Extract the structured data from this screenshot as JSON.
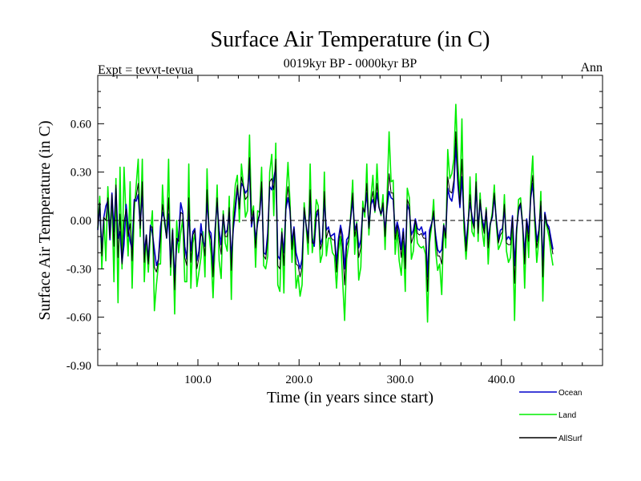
{
  "chart_data": {
    "type": "line",
    "title": "Surface Air Temperature (in C)",
    "subtitle": "0019kyr BP - 0000kyr BP",
    "left_label": "Expt = tevvt-tevua",
    "right_label": "Ann",
    "xlabel": "Time (in years since start)",
    "ylabel": "Surface Air Temperature (in C)",
    "xlim": [
      1,
      500
    ],
    "ylim": [
      -0.9,
      0.9
    ],
    "x_ticks": [
      100,
      200,
      300,
      400
    ],
    "x_tick_labels": [
      "100.0",
      "200.0",
      "300.0",
      "400.0"
    ],
    "y_ticks": [
      -0.9,
      -0.6,
      -0.3,
      0.0,
      0.3,
      0.6
    ],
    "y_tick_labels": [
      "-0.90",
      "-0.60",
      "-0.30",
      "0.00",
      "0.30",
      "0.60"
    ],
    "zero_line": true,
    "legend_position": "bottom-right",
    "x_start": 1,
    "x_step": 2,
    "series": [
      {
        "name": "Land",
        "color": "#00ee00",
        "values": [
          -0.05,
          0.15,
          -0.3,
          0.02,
          -0.25,
          0.21,
          -0.08,
          0.13,
          -0.38,
          0.26,
          -0.51,
          0.33,
          -0.3,
          0.33,
          0.01,
          -0.22,
          0.24,
          -0.42,
          0.06,
          0.22,
          0.38,
          -0.1,
          0.38,
          -0.38,
          -0.1,
          -0.32,
          -0.08,
          0.06,
          -0.56,
          -0.4,
          -0.27,
          -0.27,
          0.22,
          -0.02,
          -0.1,
          0.38,
          -0.34,
          -0.05,
          -0.58,
          0.0,
          -0.2,
          -0.08,
          0.01,
          -0.38,
          -0.38,
          0.35,
          -0.42,
          -0.14,
          -0.08,
          -0.41,
          -0.32,
          -0.23,
          -0.07,
          -0.35,
          0.32,
          -0.08,
          -0.21,
          -0.48,
          -0.13,
          0.22,
          -0.25,
          -0.36,
          0.06,
          -0.14,
          -0.19,
          0.15,
          -0.49,
          0.05,
          0.22,
          0.28,
          -0.01,
          0.35,
          0.22,
          0.02,
          0.06,
          0.53,
          0.03,
          0.09,
          -0.29,
          0.06,
          0.05,
          0.33,
          -0.28,
          -0.3,
          -0.22,
          0.3,
          0.41,
          0.03,
          0.48,
          -0.4,
          -0.44,
          -0.05,
          -0.45,
          0.13,
          0.36,
          0.12,
          -0.26,
          -0.07,
          -0.42,
          -0.34,
          -0.47,
          -0.4,
          0.11,
          -0.04,
          -0.21,
          0.35,
          -0.2,
          -0.09,
          0.13,
          0.09,
          -0.26,
          -0.21,
          0.3,
          -0.22,
          -0.11,
          -0.11,
          -0.2,
          -0.22,
          -0.42,
          -0.19,
          -0.1,
          -0.36,
          -0.62,
          -0.24,
          -0.15,
          0.03,
          0.25,
          -0.21,
          -0.01,
          -0.37,
          -0.29,
          0.12,
          0.02,
          0.35,
          -0.09,
          0.14,
          0.28,
          0.05,
          0.35,
          0.09,
          0.03,
          0.16,
          -0.18,
          0.15,
          0.55,
          0.24,
          0.25,
          -0.21,
          -0.06,
          -0.25,
          -0.34,
          -0.13,
          -0.44,
          0.2,
          0.14,
          -0.24,
          -0.19,
          -0.02,
          -0.14,
          -0.16,
          -0.17,
          -0.16,
          -0.21,
          -0.63,
          -0.14,
          -0.04,
          0.13,
          -0.19,
          -0.31,
          -0.27,
          -0.46,
          -0.02,
          -0.17,
          0.44,
          0.26,
          0.29,
          0.38,
          0.72,
          0.35,
          0.14,
          0.63,
          -0.05,
          -0.24,
          -0.07,
          0.27,
          -0.07,
          -0.1,
          0.29,
          -0.13,
          0.17,
          -0.06,
          -0.16,
          0.08,
          -0.27,
          -0.03,
          0.05,
          0.22,
          -0.02,
          -0.18,
          -0.15,
          -0.11,
          0.16,
          -0.19,
          -0.26,
          -0.23,
          -0.01,
          -0.62,
          -0.09,
          0.13,
          0.14,
          -0.03,
          -0.42,
          -0.01,
          -0.23,
          0.21,
          0.4,
          -0.02,
          -0.26,
          -0.12,
          0.18,
          -0.5,
          0.02,
          -0.04,
          -0.1,
          -0.2,
          -0.28
        ]
      },
      {
        "name": "Ocean",
        "color": "#0000cc",
        "values": [
          -0.06,
          0.1,
          -0.19,
          0.02,
          0.09,
          0.12,
          -0.12,
          0.17,
          -0.07,
          0.2,
          -0.11,
          -0.07,
          -0.26,
          -0.15,
          0.1,
          -0.04,
          -0.13,
          -0.18,
          0.13,
          0.12,
          0.16,
          -0.03,
          0.18,
          -0.21,
          -0.09,
          -0.25,
          -0.03,
          -0.08,
          -0.18,
          -0.28,
          -0.24,
          -0.04,
          0.05,
          0.01,
          -0.11,
          0.04,
          -0.27,
          -0.06,
          -0.36,
          -0.15,
          -0.1,
          0.11,
          0.05,
          -0.16,
          -0.24,
          0.06,
          -0.19,
          -0.07,
          -0.05,
          -0.25,
          -0.19,
          -0.02,
          -0.13,
          -0.16,
          0.13,
          -0.06,
          -0.08,
          -0.3,
          -0.05,
          0.11,
          -0.06,
          -0.15,
          0.03,
          -0.08,
          -0.06,
          0.05,
          -0.24,
          -0.05,
          0.06,
          0.2,
          0.1,
          0.23,
          0.21,
          0.17,
          0.19,
          0.32,
          -0.04,
          0.05,
          -0.12,
          -0.02,
          0.04,
          0.2,
          -0.2,
          -0.21,
          -0.08,
          0.21,
          0.19,
          0.26,
          0.33,
          -0.22,
          -0.24,
          -0.08,
          -0.2,
          0.07,
          0.14,
          0.06,
          -0.14,
          -0.04,
          -0.2,
          -0.25,
          -0.3,
          -0.24,
          0.06,
          -0.03,
          -0.11,
          0.12,
          -0.11,
          -0.16,
          0.02,
          0.06,
          -0.15,
          -0.11,
          0.13,
          -0.06,
          -0.04,
          -0.1,
          -0.09,
          -0.08,
          -0.27,
          -0.11,
          -0.03,
          -0.09,
          -0.3,
          -0.12,
          -0.1,
          0.01,
          0.13,
          -0.06,
          -0.02,
          -0.17,
          -0.12,
          0.06,
          0.06,
          0.17,
          -0.04,
          0.1,
          0.13,
          0.06,
          0.17,
          0.08,
          0.04,
          0.08,
          -0.06,
          0.08,
          0.18,
          0.14,
          0.13,
          -0.08,
          -0.01,
          -0.06,
          -0.18,
          -0.05,
          -0.24,
          0.1,
          0.06,
          -0.09,
          -0.06,
          0.01,
          -0.05,
          -0.06,
          -0.04,
          -0.09,
          -0.07,
          -0.35,
          -0.06,
          -0.02,
          0.03,
          -0.09,
          -0.18,
          -0.2,
          -0.18,
          -0.03,
          -0.08,
          0.2,
          0.14,
          0.12,
          0.2,
          0.48,
          0.22,
          0.08,
          0.27,
          0.03,
          -0.16,
          -0.01,
          0.11,
          0.03,
          -0.03,
          0.21,
          -0.05,
          0.11,
          0.01,
          -0.05,
          0.06,
          -0.12,
          -0.02,
          0.02,
          0.15,
          0.01,
          -0.12,
          -0.06,
          -0.05,
          0.07,
          -0.12,
          -0.1,
          -0.12,
          0.03,
          -0.28,
          -0.05,
          0.06,
          0.1,
          -0.03,
          -0.21,
          0.01,
          -0.08,
          0.14,
          0.23,
          0.04,
          -0.13,
          -0.06,
          0.09,
          -0.28,
          0.05,
          -0.02,
          -0.04,
          -0.11,
          -0.18
        ]
      },
      {
        "name": "AllSurf",
        "color": "#000000",
        "values": [
          -0.06,
          0.11,
          -0.22,
          0.02,
          0.0,
          0.14,
          -0.11,
          0.16,
          -0.16,
          0.22,
          -0.23,
          0.04,
          -0.27,
          -0.01,
          0.07,
          -0.1,
          -0.02,
          -0.25,
          0.11,
          0.15,
          0.23,
          -0.05,
          0.24,
          -0.26,
          -0.09,
          -0.27,
          -0.04,
          -0.04,
          -0.29,
          -0.32,
          -0.25,
          -0.11,
          0.1,
          0.0,
          -0.11,
          0.14,
          -0.29,
          -0.06,
          -0.43,
          -0.11,
          -0.13,
          0.05,
          0.04,
          -0.23,
          -0.28,
          0.14,
          -0.26,
          -0.09,
          -0.06,
          -0.3,
          -0.23,
          -0.08,
          -0.11,
          -0.22,
          0.19,
          -0.07,
          -0.12,
          -0.35,
          -0.07,
          0.14,
          -0.12,
          -0.21,
          0.04,
          -0.1,
          -0.1,
          0.08,
          -0.31,
          -0.02,
          0.11,
          0.22,
          0.07,
          0.27,
          0.21,
          0.13,
          0.15,
          0.39,
          -0.02,
          0.06,
          -0.17,
          0.0,
          0.04,
          0.24,
          -0.22,
          -0.24,
          -0.12,
          0.24,
          0.26,
          0.19,
          0.38,
          -0.28,
          -0.3,
          -0.07,
          -0.28,
          0.09,
          0.21,
          0.08,
          -0.18,
          -0.05,
          -0.27,
          -0.28,
          -0.35,
          -0.29,
          0.08,
          -0.03,
          -0.14,
          0.19,
          -0.14,
          -0.14,
          0.05,
          0.07,
          -0.18,
          -0.14,
          0.18,
          -0.11,
          -0.06,
          -0.1,
          -0.12,
          -0.12,
          -0.32,
          -0.14,
          -0.05,
          -0.17,
          -0.4,
          -0.16,
          -0.12,
          0.02,
          0.17,
          -0.1,
          -0.02,
          -0.23,
          -0.17,
          0.08,
          0.05,
          0.23,
          -0.05,
          0.11,
          0.18,
          0.06,
          0.23,
          0.08,
          0.04,
          0.11,
          -0.1,
          0.1,
          0.29,
          0.17,
          0.17,
          -0.12,
          -0.03,
          -0.12,
          -0.23,
          -0.07,
          -0.3,
          0.13,
          0.09,
          -0.14,
          -0.1,
          0.0,
          -0.08,
          -0.09,
          -0.08,
          -0.11,
          -0.11,
          -0.44,
          -0.09,
          -0.03,
          0.06,
          -0.12,
          -0.22,
          -0.22,
          -0.27,
          -0.03,
          -0.11,
          0.27,
          0.18,
          0.17,
          0.25,
          0.55,
          0.26,
          0.1,
          0.38,
          0.01,
          -0.19,
          -0.03,
          0.16,
          0.0,
          -0.05,
          0.24,
          -0.08,
          0.13,
          -0.01,
          -0.08,
          0.07,
          -0.17,
          -0.02,
          0.03,
          0.17,
          0.0,
          -0.14,
          -0.09,
          -0.07,
          0.1,
          -0.14,
          -0.15,
          -0.15,
          0.02,
          -0.39,
          -0.06,
          0.08,
          0.11,
          -0.03,
          -0.27,
          0.0,
          -0.13,
          0.16,
          0.28,
          0.02,
          -0.17,
          -0.08,
          0.12,
          -0.35,
          0.04,
          -0.03,
          -0.06,
          -0.14,
          -0.21
        ]
      }
    ],
    "legend": [
      {
        "name": "Ocean",
        "color": "#0000cc"
      },
      {
        "name": "Land",
        "color": "#00ee00"
      },
      {
        "name": "AllSurf",
        "color": "#000000"
      }
    ]
  }
}
